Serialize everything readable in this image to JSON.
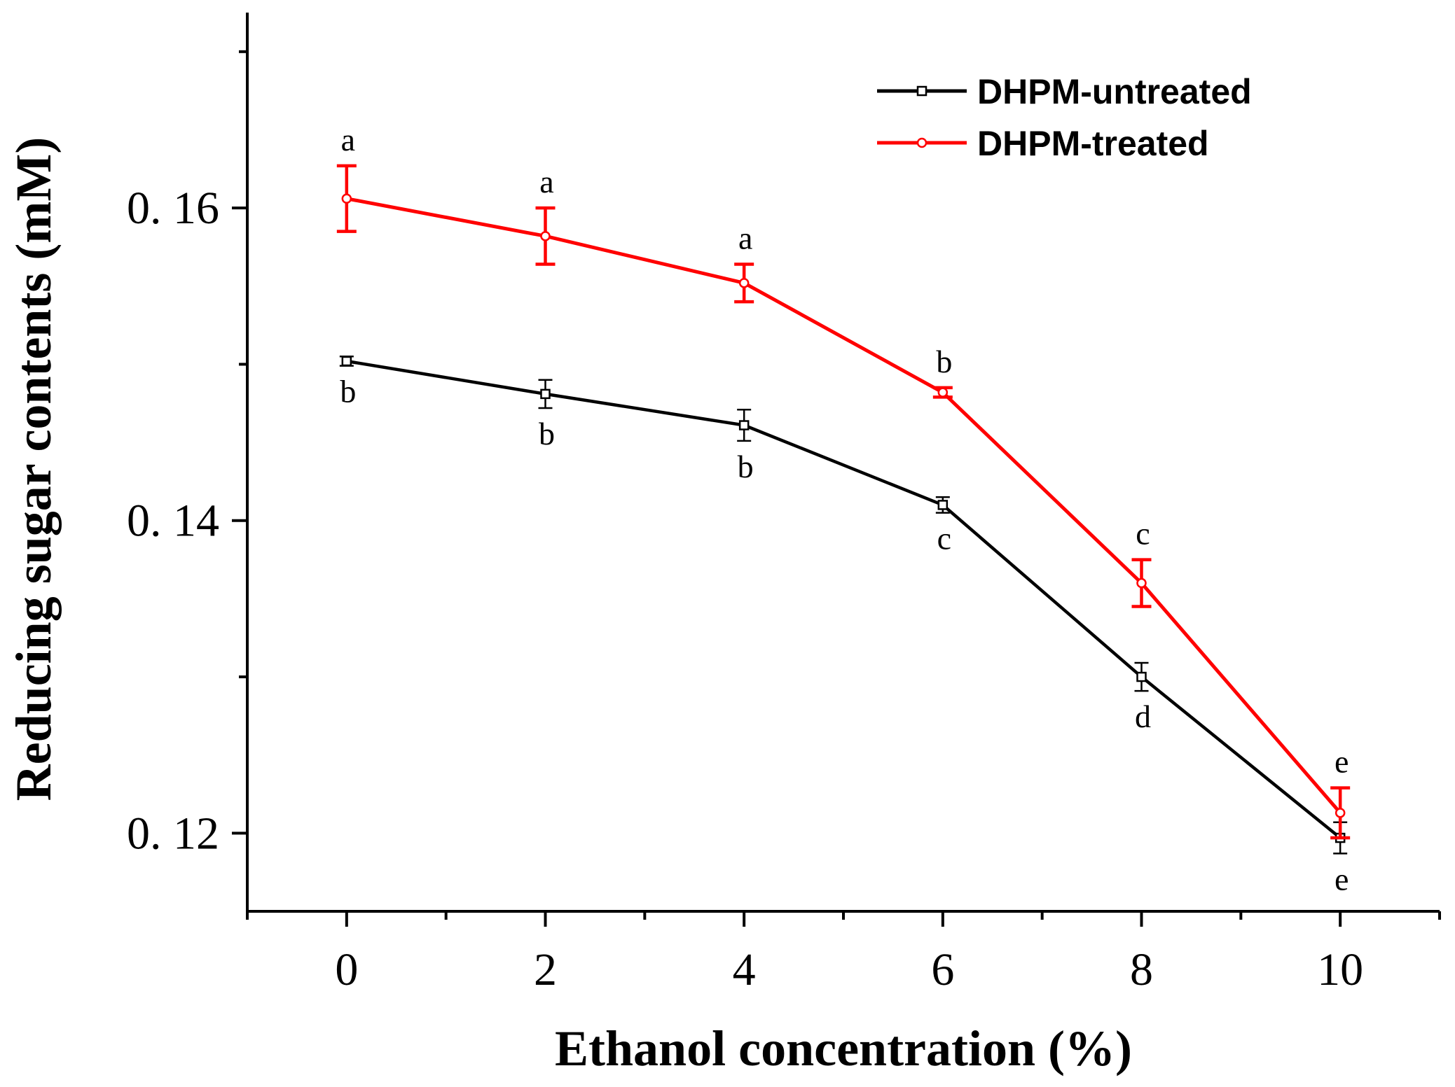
{
  "chart_data": {
    "type": "line",
    "xlabel": "Ethanol concentration (%)",
    "ylabel": "Reducing sugar contents (mM)",
    "xlim": [
      -1,
      11
    ],
    "ylim": [
      0.115,
      0.1725
    ],
    "x_ticks": [
      0,
      2,
      4,
      6,
      8,
      10
    ],
    "x_tick_labels": [
      "0",
      "2",
      "4",
      "6",
      "8",
      "10"
    ],
    "y_ticks": [
      0.12,
      0.14,
      0.16
    ],
    "y_tick_labels": [
      "0. 12",
      "0. 14",
      "0. 16"
    ],
    "legend_position": "top-right",
    "series": [
      {
        "name": "DHPM-untreated",
        "color": "#000000",
        "marker": "square",
        "x": [
          0,
          2,
          4,
          6,
          8,
          10
        ],
        "values": [
          0.1502,
          0.1481,
          0.1461,
          0.141,
          0.13,
          0.1197
        ],
        "errors": [
          0.0003,
          0.0009,
          0.001,
          0.0005,
          0.0009,
          0.001
        ],
        "labels": [
          "b",
          "b",
          "b",
          "c",
          "d",
          "e"
        ]
      },
      {
        "name": "DHPM-treated",
        "color": "#ff0000",
        "marker": "circle",
        "x": [
          0,
          2,
          4,
          6,
          8,
          10
        ],
        "values": [
          0.1606,
          0.1582,
          0.1552,
          0.1482,
          0.136,
          0.1213
        ],
        "errors": [
          0.0021,
          0.0018,
          0.0012,
          0.0003,
          0.0015,
          0.0016
        ],
        "labels": [
          "a",
          "a",
          "a",
          "b",
          "c",
          "e"
        ]
      }
    ]
  }
}
